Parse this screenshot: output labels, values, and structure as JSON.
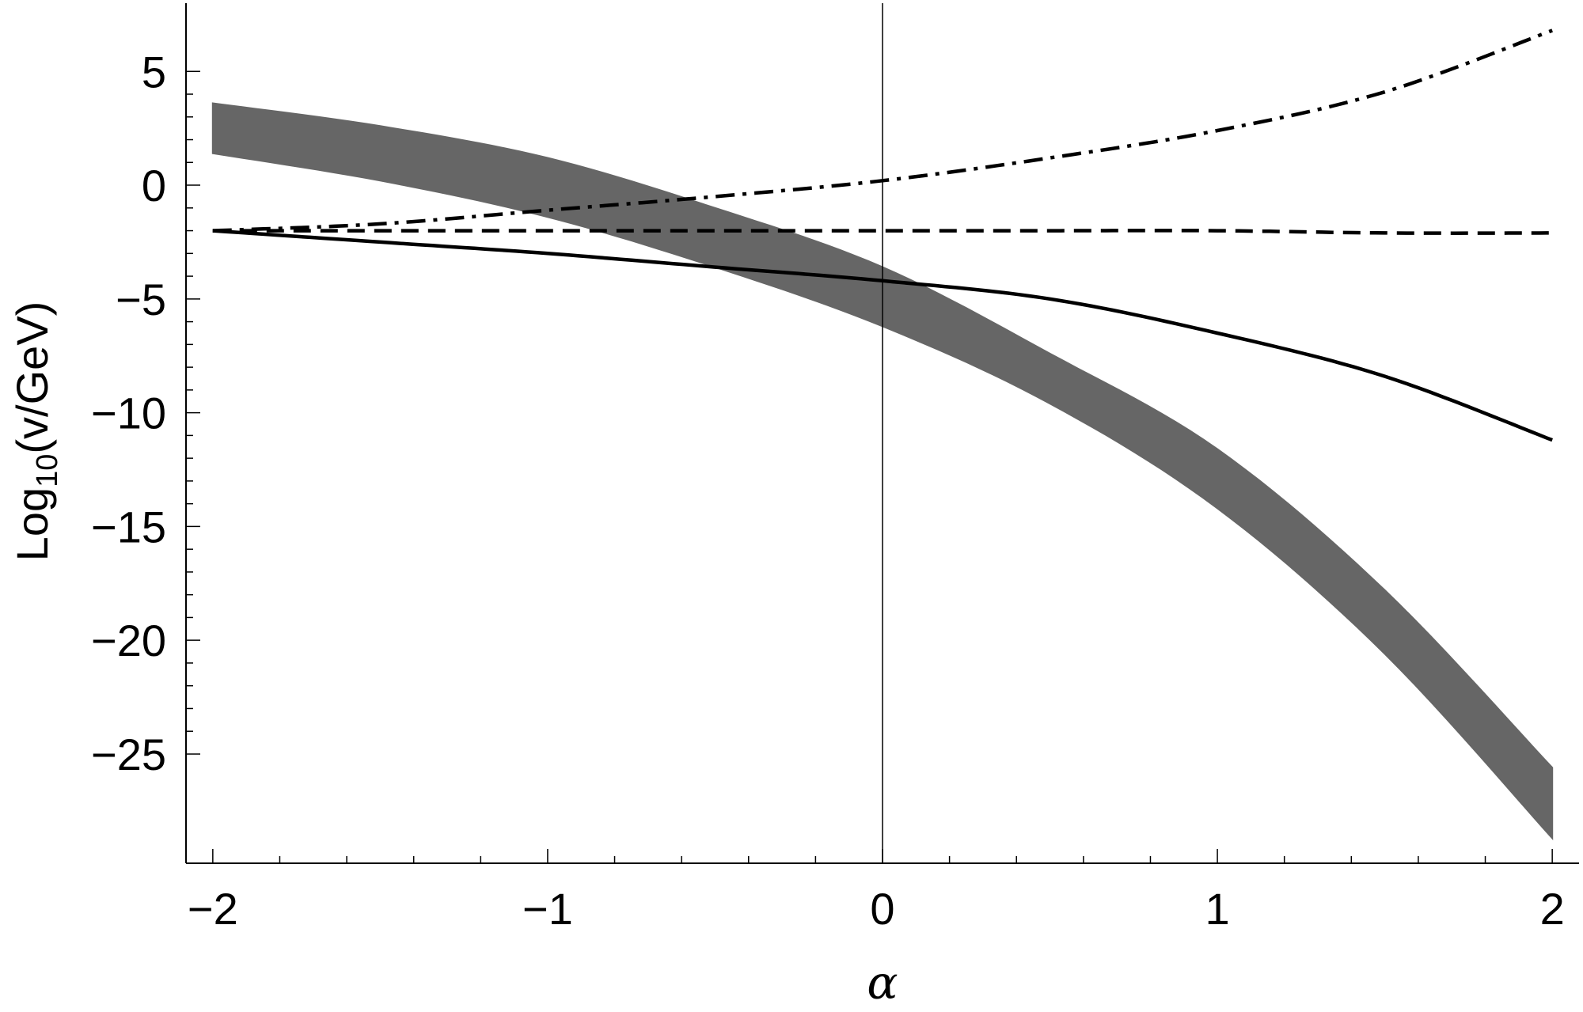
{
  "chart_data": {
    "type": "line",
    "xlabel": "α",
    "ylabel": {
      "prefix": "Log",
      "subscript": "10",
      "suffix": "(v/GeV)"
    },
    "xlim": [
      -2.08,
      2.08
    ],
    "ylim": [
      -29.8,
      8
    ],
    "x_ticks": [
      -2,
      -1,
      0,
      1,
      2
    ],
    "x_tick_labels": [
      "−2",
      "−1",
      "0",
      "1",
      "2"
    ],
    "y_ticks": [
      5,
      0,
      -5,
      -10,
      -15,
      -20,
      -25
    ],
    "y_tick_labels": [
      "5",
      "0",
      "−5",
      "−10",
      "−15",
      "−20",
      "−25"
    ],
    "grid": false,
    "colors": {
      "band": "#666666",
      "lines": "#000000",
      "axes": "#000000"
    },
    "band": {
      "name": "",
      "x": [
        -2,
        -1.5,
        -1,
        -0.5,
        0,
        0.5,
        1,
        1.5,
        2
      ],
      "upper": [
        3.6,
        2.6,
        1.2,
        -1.0,
        -3.6,
        -7.4,
        -11.6,
        -17.8,
        -25.6
      ],
      "lower": [
        1.4,
        0.2,
        -1.4,
        -3.6,
        -6.2,
        -9.6,
        -14.2,
        -20.6,
        -28.7
      ]
    },
    "series": [
      {
        "style": "dashdot",
        "x": [
          -2,
          -1.5,
          -1,
          -0.5,
          0,
          0.5,
          1,
          1.5,
          2
        ],
        "y": [
          -2.0,
          -1.7,
          -1.1,
          -0.5,
          0.2,
          1.2,
          2.4,
          4.1,
          6.8
        ]
      },
      {
        "style": "dashed",
        "x": [
          -2,
          -1.5,
          -1,
          -0.5,
          0,
          0.5,
          1,
          1.5,
          2
        ],
        "y": [
          -2.0,
          -2.0,
          -2.0,
          -2.0,
          -2.0,
          -2.0,
          -2.0,
          -2.1,
          -2.1
        ]
      },
      {
        "style": "solid",
        "x": [
          -2,
          -1.5,
          -1,
          -0.5,
          0,
          0.5,
          1,
          1.5,
          2
        ],
        "y": [
          -2.0,
          -2.5,
          -3.0,
          -3.6,
          -4.2,
          -5.0,
          -6.5,
          -8.4,
          -11.2
        ]
      }
    ]
  }
}
